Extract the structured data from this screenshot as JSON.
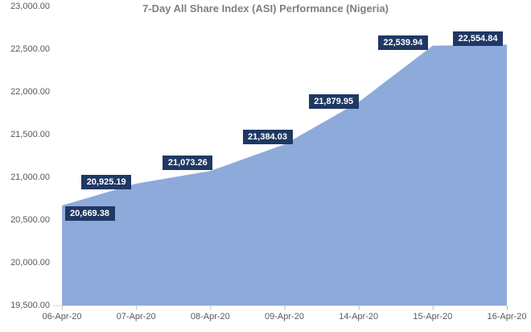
{
  "chart_data": {
    "type": "area",
    "title": "7-Day All Share Index (ASI) Performance (Nigeria)",
    "categories": [
      "06-Apr-20",
      "07-Apr-20",
      "08-Apr-20",
      "09-Apr-20",
      "14-Apr-20",
      "15-Apr-20",
      "16-Apr-20"
    ],
    "values": [
      20669.38,
      20925.19,
      21073.26,
      21384.03,
      21879.95,
      22539.94,
      22554.84
    ],
    "point_labels": [
      "20,669.38",
      "20,925.19",
      "21,073.26",
      "21,384.03",
      "21,879.95",
      "22,539.94",
      "22,554.84"
    ],
    "xlabel": "",
    "ylabel": "",
    "ylim": [
      19500,
      23000
    ],
    "y_ticks": [
      {
        "value": 23000,
        "label": "23,000.00"
      },
      {
        "value": 22500,
        "label": "22,500.00"
      },
      {
        "value": 22000,
        "label": "22,000.00"
      },
      {
        "value": 21500,
        "label": "21,500.00"
      },
      {
        "value": 21000,
        "label": "21,000.00"
      },
      {
        "value": 20500,
        "label": "20,500.00"
      },
      {
        "value": 20000,
        "label": "20,000.00"
      },
      {
        "value": 19500,
        "label": "19,500.00"
      }
    ],
    "grid": false,
    "legend": "none",
    "colors": {
      "area_fill": "#8eaadb",
      "data_label_bg": "#1f3864",
      "data_label_text": "#ffffff",
      "title_text": "#7f7f7f",
      "axis_text": "#595959",
      "axis_line": "#d9d9d9",
      "tick_mark": "#bfbfbf",
      "background": "#ffffff"
    }
  }
}
